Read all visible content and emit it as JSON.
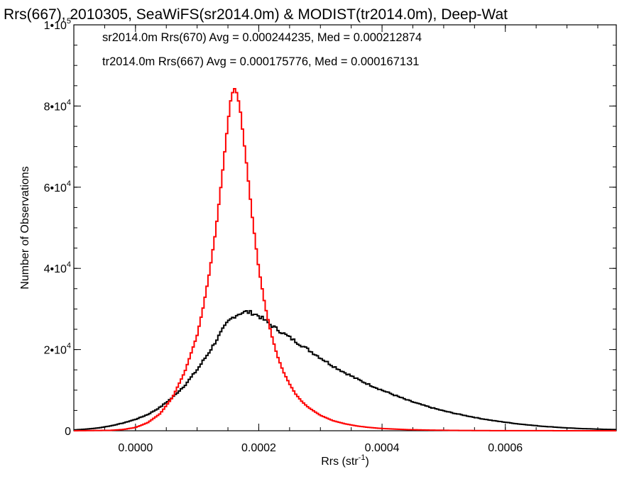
{
  "chart_data": {
    "type": "line",
    "title": "Rrs(667), 2010305, SeaWiFS(sr2014.0m) & MODIST(tr2014.0m), Deep-Wat",
    "xlabel": "Rrs (str",
    "xlabel_sup": "-1",
    "xlabel_end": ")",
    "ylabel": "Number of Observations",
    "xlim": [
      -0.0001,
      0.00078
    ],
    "ylim": [
      0,
      100000
    ],
    "x_ticks": [
      {
        "value": 0.0,
        "label": "0.0000"
      },
      {
        "value": 0.0002,
        "label": "0.0002"
      },
      {
        "value": 0.0004,
        "label": "0.0004"
      },
      {
        "value": 0.0006,
        "label": "0.0006"
      }
    ],
    "y_ticks": [
      {
        "value": 0,
        "base": "0",
        "exp": ""
      },
      {
        "value": 20000,
        "base": "2•10",
        "exp": "4"
      },
      {
        "value": 40000,
        "base": "4•10",
        "exp": "4"
      },
      {
        "value": 60000,
        "base": "6•10",
        "exp": "4"
      },
      {
        "value": 80000,
        "base": "8•10",
        "exp": "4"
      },
      {
        "value": 100000,
        "base": "1•10",
        "exp": "5"
      }
    ],
    "grid": false,
    "legend_position": "top-left",
    "series": [
      {
        "name": "sr2014.0m Rrs(670) Avg = 0.000244235, Med = 0.000212874",
        "color": "#000000",
        "style": "histogram-step",
        "points": [
          [
            -0.0001,
            200
          ],
          [
            -8e-05,
            400
          ],
          [
            -6e-05,
            700
          ],
          [
            -4e-05,
            1200
          ],
          [
            -2e-05,
            1900
          ],
          [
            0.0,
            2800
          ],
          [
            2e-05,
            4000
          ],
          [
            4e-05,
            5800
          ],
          [
            6e-05,
            8200
          ],
          [
            8e-05,
            11200
          ],
          [
            0.0001,
            15000
          ],
          [
            0.00012,
            19500
          ],
          [
            0.00013,
            22000
          ],
          [
            0.00014,
            24500
          ],
          [
            0.00015,
            26800
          ],
          [
            0.00016,
            28200
          ],
          [
            0.00017,
            29000
          ],
          [
            0.00018,
            29300
          ],
          [
            0.00019,
            29000
          ],
          [
            0.0002,
            28300
          ],
          [
            0.00021,
            27200
          ],
          [
            0.00022,
            26000
          ],
          [
            0.00023,
            25000
          ],
          [
            0.00024,
            24000
          ],
          [
            0.00025,
            23000
          ],
          [
            0.00026,
            22000
          ],
          [
            0.00028,
            20000
          ],
          [
            0.0003,
            18000
          ],
          [
            0.00032,
            16000
          ],
          [
            0.00034,
            14300
          ],
          [
            0.00036,
            12700
          ],
          [
            0.00038,
            11300
          ],
          [
            0.0004,
            10000
          ],
          [
            0.00042,
            8800
          ],
          [
            0.00044,
            7600
          ],
          [
            0.00046,
            6600
          ],
          [
            0.00048,
            5700
          ],
          [
            0.0005,
            4900
          ],
          [
            0.00052,
            4200
          ],
          [
            0.00054,
            3600
          ],
          [
            0.00056,
            3000
          ],
          [
            0.00058,
            2500
          ],
          [
            0.0006,
            2100
          ],
          [
            0.00062,
            1700
          ],
          [
            0.00064,
            1400
          ],
          [
            0.00066,
            1100
          ],
          [
            0.00068,
            900
          ],
          [
            0.0007,
            700
          ],
          [
            0.00072,
            550
          ],
          [
            0.00074,
            450
          ],
          [
            0.00076,
            350
          ],
          [
            0.00078,
            280
          ]
        ]
      },
      {
        "name": "tr2014.0m Rrs(667) Avg = 0.000175776, Med = 0.000167131",
        "color": "#ff0000",
        "style": "histogram-step",
        "points": [
          [
            -0.0001,
            0
          ],
          [
            -4e-05,
            100
          ],
          [
            -2e-05,
            300
          ],
          [
            0.0,
            800
          ],
          [
            2e-05,
            2000
          ],
          [
            4e-05,
            4200
          ],
          [
            6e-05,
            8200
          ],
          [
            8e-05,
            14500
          ],
          [
            0.0001,
            23500
          ],
          [
            0.00011,
            30500
          ],
          [
            0.00012,
            39000
          ],
          [
            0.00013,
            49000
          ],
          [
            0.00014,
            62000
          ],
          [
            0.00015,
            76000
          ],
          [
            0.000155,
            82000
          ],
          [
            0.00016,
            84500
          ],
          [
            0.000165,
            83000
          ],
          [
            0.00017,
            79000
          ],
          [
            0.00018,
            66000
          ],
          [
            0.00019,
            52000
          ],
          [
            0.0002,
            40000
          ],
          [
            0.00021,
            31000
          ],
          [
            0.00022,
            24000
          ],
          [
            0.00023,
            18500
          ],
          [
            0.00024,
            14500
          ],
          [
            0.00025,
            11500
          ],
          [
            0.00026,
            9000
          ],
          [
            0.00027,
            7200
          ],
          [
            0.00028,
            5800
          ],
          [
            0.0003,
            3800
          ],
          [
            0.00032,
            2500
          ],
          [
            0.00034,
            1700
          ],
          [
            0.00036,
            1150
          ],
          [
            0.00038,
            800
          ],
          [
            0.0004,
            550
          ],
          [
            0.00044,
            280
          ],
          [
            0.00048,
            150
          ],
          [
            0.00052,
            80
          ],
          [
            0.00056,
            40
          ],
          [
            0.0006,
            20
          ],
          [
            0.00078,
            0
          ]
        ]
      }
    ]
  }
}
